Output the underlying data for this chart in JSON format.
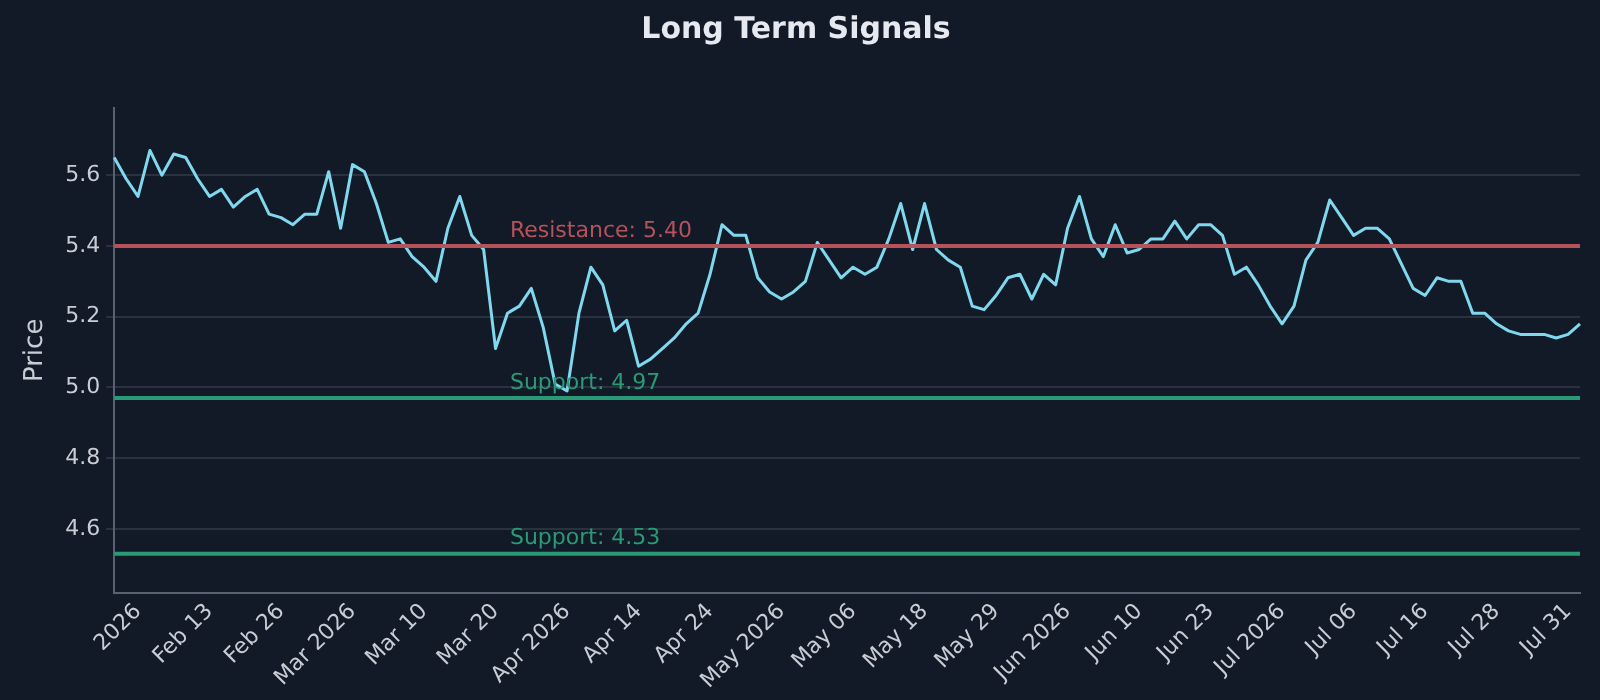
{
  "chart_data": {
    "type": "line",
    "title": "Long Term Signals",
    "ylabel": "Price",
    "categories": [
      null,
      null,
      "2026",
      null,
      null,
      null,
      null,
      null,
      "Feb 13",
      null,
      null,
      null,
      null,
      null,
      "Feb 26",
      null,
      null,
      null,
      null,
      null,
      "Mar 2026",
      null,
      null,
      null,
      null,
      null,
      "Mar 10",
      null,
      null,
      null,
      null,
      null,
      "Mar 20",
      null,
      null,
      null,
      null,
      null,
      "Apr 2026",
      null,
      null,
      null,
      null,
      null,
      "Apr 14",
      null,
      null,
      null,
      null,
      null,
      "Apr 24",
      null,
      null,
      null,
      null,
      null,
      "May 2026",
      null,
      null,
      null,
      null,
      null,
      "May 06",
      null,
      null,
      null,
      null,
      null,
      "May 18",
      null,
      null,
      null,
      null,
      null,
      "May 29",
      null,
      null,
      null,
      null,
      null,
      "Jun 2026",
      null,
      null,
      null,
      null,
      null,
      "Jun 10",
      null,
      null,
      null,
      null,
      null,
      "Jun 23",
      null,
      null,
      null,
      null,
      null,
      "Jul 2026",
      null,
      null,
      null,
      null,
      null,
      "Jul 06",
      null,
      null,
      null,
      null,
      null,
      "Jul 16",
      null,
      null,
      null,
      null,
      null,
      "Jul 28",
      null,
      null,
      null,
      null,
      null,
      "Jul 31",
      null
    ],
    "series": [
      {
        "color": "#7fd8ee",
        "values": [
          5.65,
          5.59,
          5.54,
          5.67,
          5.6,
          5.66,
          5.65,
          5.59,
          5.54,
          5.56,
          5.51,
          5.54,
          5.56,
          5.49,
          5.48,
          5.46,
          5.49,
          5.49,
          5.61,
          5.45,
          5.63,
          5.61,
          5.52,
          5.41,
          5.42,
          5.37,
          5.34,
          5.3,
          5.45,
          5.54,
          5.43,
          5.39,
          5.11,
          5.21,
          5.23,
          5.28,
          5.17,
          5.01,
          4.99,
          5.21,
          5.34,
          5.29,
          5.16,
          5.19,
          5.06,
          5.08,
          5.11,
          5.14,
          5.18,
          5.21,
          5.32,
          5.46,
          5.43,
          5.43,
          5.31,
          5.27,
          5.25,
          5.27,
          5.3,
          5.41,
          5.36,
          5.31,
          5.34,
          5.32,
          5.34,
          5.42,
          5.52,
          5.39,
          5.52,
          5.39,
          5.36,
          5.34,
          5.23,
          5.22,
          5.26,
          5.31,
          5.32,
          5.25,
          5.32,
          5.29,
          5.45,
          5.54,
          5.42,
          5.37,
          5.46,
          5.38,
          5.39,
          5.42,
          5.42,
          5.47,
          5.42,
          5.46,
          5.46,
          5.43,
          5.32,
          5.34,
          5.29,
          5.23,
          5.18,
          5.23,
          5.36,
          5.41,
          5.53,
          5.48,
          5.43,
          5.45,
          5.45,
          5.42,
          5.35,
          5.28,
          5.26,
          5.31,
          5.3,
          5.3,
          5.21,
          5.21,
          5.18,
          5.16,
          5.15,
          5.15,
          5.15,
          5.14,
          5.15,
          5.18
        ]
      }
    ],
    "ylim": [
      4.42,
      5.79
    ],
    "yticks": [
      4.6,
      4.8,
      {
        "value": 5,
        "label": "5.0"
      },
      5.2,
      5.4,
      5.6
    ],
    "grid": "y",
    "legend": false,
    "marker": "none",
    "line_style": "solid",
    "ref_lines": [
      {
        "axis": "y",
        "value": 5.4,
        "label": "Resistance: 5.40",
        "color": "#b5525a"
      },
      {
        "axis": "y",
        "value": 4.97,
        "label": "Support: 4.97",
        "color": "#2a9a76"
      },
      {
        "axis": "y",
        "value": 4.53,
        "label": "Support: 4.53",
        "color": "#2a9a76"
      }
    ]
  }
}
